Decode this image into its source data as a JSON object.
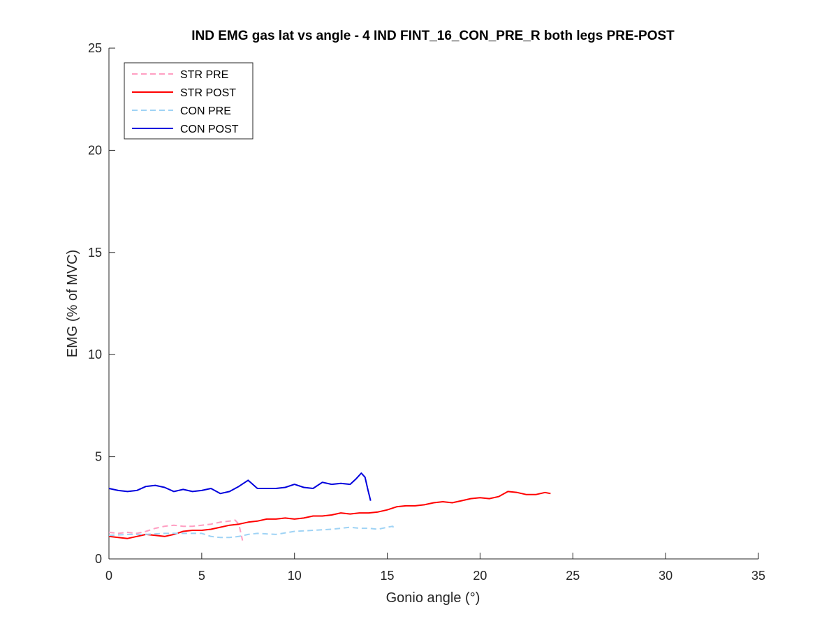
{
  "chart_data": {
    "type": "line",
    "title": "IND EMG gas lat vs angle - 4 IND FINT_16_CON_PRE_R both legs PRE-POST",
    "xlabel": "Gonio angle (°)",
    "ylabel": "EMG (% of MVC)",
    "xlim": [
      0,
      35
    ],
    "ylim": [
      0,
      25
    ],
    "xticks": [
      0,
      5,
      10,
      15,
      20,
      25,
      30,
      35
    ],
    "yticks": [
      0,
      5,
      10,
      15,
      20,
      25
    ],
    "grid": false,
    "legend_position": "top-left",
    "series": [
      {
        "name": "STR PRE",
        "color": "#ff9ec2",
        "style": "dashed",
        "x": [
          0,
          0.5,
          1,
          1.5,
          2,
          2.5,
          3,
          3.5,
          4,
          4.5,
          5,
          5.5,
          6,
          6.5,
          6.8,
          7.0,
          7.1,
          7.2
        ],
        "y": [
          1.3,
          1.25,
          1.3,
          1.25,
          1.35,
          1.5,
          1.6,
          1.65,
          1.6,
          1.6,
          1.65,
          1.7,
          1.8,
          1.85,
          1.9,
          1.7,
          1.3,
          0.9
        ]
      },
      {
        "name": "STR POST",
        "color": "#ff0000",
        "style": "solid",
        "x": [
          0,
          0.5,
          1,
          1.5,
          2,
          2.5,
          3,
          3.5,
          4,
          4.5,
          5,
          5.5,
          6,
          6.5,
          7,
          7.5,
          8,
          8.5,
          9,
          9.5,
          10,
          10.5,
          11,
          11.5,
          12,
          12.5,
          13,
          13.5,
          14,
          14.5,
          15,
          15.5,
          16,
          16.5,
          17,
          17.5,
          18,
          18.5,
          19,
          19.5,
          20,
          20.5,
          21,
          21.5,
          22,
          22.5,
          23,
          23.5,
          23.8
        ],
        "y": [
          1.1,
          1.05,
          1.0,
          1.1,
          1.2,
          1.15,
          1.1,
          1.2,
          1.35,
          1.4,
          1.4,
          1.45,
          1.55,
          1.65,
          1.7,
          1.8,
          1.85,
          1.95,
          1.95,
          2.0,
          1.95,
          2.0,
          2.1,
          2.1,
          2.15,
          2.25,
          2.2,
          2.25,
          2.25,
          2.3,
          2.4,
          2.55,
          2.6,
          2.6,
          2.65,
          2.75,
          2.8,
          2.75,
          2.85,
          2.95,
          3.0,
          2.95,
          3.05,
          3.3,
          3.25,
          3.15,
          3.15,
          3.25,
          3.2
        ]
      },
      {
        "name": "CON PRE",
        "color": "#9fd3f5",
        "style": "dashed",
        "x": [
          0,
          1,
          2,
          3,
          4,
          5,
          5.5,
          6,
          6.5,
          7,
          7.5,
          8,
          9,
          10,
          11,
          12,
          12.5,
          13,
          13.5,
          14,
          14.5,
          15,
          15.3,
          15.4
        ],
        "y": [
          1.15,
          1.2,
          1.2,
          1.25,
          1.25,
          1.25,
          1.1,
          1.05,
          1.05,
          1.1,
          1.2,
          1.25,
          1.2,
          1.35,
          1.4,
          1.45,
          1.5,
          1.55,
          1.5,
          1.5,
          1.45,
          1.55,
          1.6,
          1.4
        ]
      },
      {
        "name": "CON POST",
        "color": "#0000dd",
        "style": "solid",
        "x": [
          0,
          0.5,
          1,
          1.5,
          2,
          2.5,
          3,
          3.5,
          4,
          4.5,
          5,
          5.5,
          6,
          6.5,
          7,
          7.5,
          8,
          8.5,
          9,
          9.5,
          10,
          10.5,
          11,
          11.5,
          12,
          12.5,
          13,
          13.3,
          13.6,
          13.8,
          13.95,
          14.1
        ],
        "y": [
          3.45,
          3.35,
          3.3,
          3.35,
          3.55,
          3.6,
          3.5,
          3.3,
          3.4,
          3.3,
          3.35,
          3.45,
          3.2,
          3.3,
          3.55,
          3.85,
          3.45,
          3.45,
          3.45,
          3.5,
          3.65,
          3.5,
          3.45,
          3.75,
          3.65,
          3.7,
          3.65,
          3.9,
          4.2,
          4.0,
          3.4,
          2.85
        ]
      }
    ]
  }
}
